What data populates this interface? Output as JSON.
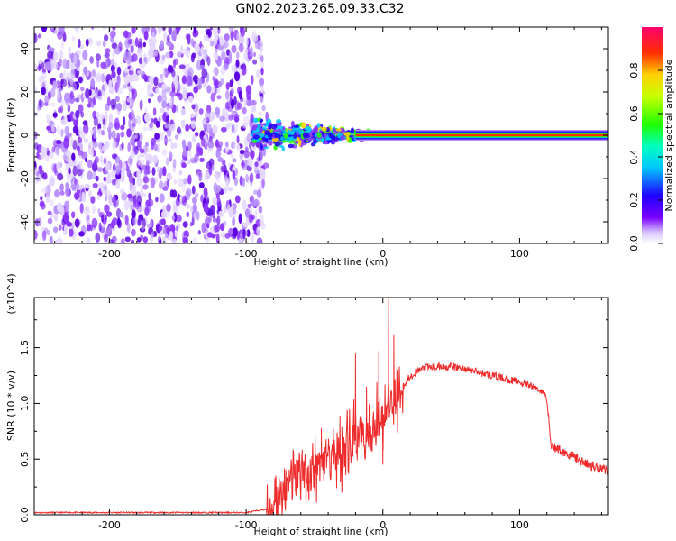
{
  "title": "GN02.2023.265.09.33.C32",
  "colors": {
    "snr_line": "#ee2a2a",
    "cloud": "#6a00ee",
    "axis": "#000000"
  },
  "chart_data": [
    {
      "type": "heatmap",
      "panel": "top",
      "xlabel": "Height of straight line (km)",
      "ylabel": "Frequency (Hz)",
      "xlim": [
        -255,
        165
      ],
      "ylim": [
        -50,
        50
      ],
      "xticks": [
        -200,
        -100,
        0,
        100
      ],
      "xtick_labels": [
        "-200",
        "-100",
        "0",
        "100"
      ],
      "yticks": [
        -40,
        -20,
        0,
        20,
        40
      ],
      "ytick_labels": [
        "-40",
        "-20",
        "0",
        "20",
        "40"
      ],
      "noise_region_x": [
        -255,
        -88
      ],
      "signal_track": {
        "x_start": -95,
        "x_end": 165,
        "frequency": 0
      },
      "colorbar": {
        "label": "Normalized spectral amplitude",
        "range": [
          0,
          1
        ],
        "ticks": [
          "0.0",
          "0.2",
          "0.4",
          "0.6",
          "0.8"
        ],
        "colormap": "rainbow (magenta-red-orange-yellow-green-cyan-blue-violet-white)"
      },
      "grid": false
    },
    {
      "type": "line",
      "panel": "bottom",
      "xlabel": "Height of straight line (km)",
      "ylabel": "SNR (10 * v/v)",
      "y_multiplier": "(x10^4)",
      "xlim": [
        -255,
        165
      ],
      "ylim": [
        0,
        1.95
      ],
      "xticks": [
        -200,
        -100,
        0,
        100
      ],
      "xtick_labels": [
        "-200",
        "-100",
        "0",
        "100"
      ],
      "yticks": [
        0,
        0.5,
        1.0,
        1.5
      ],
      "ytick_labels": [
        "0.0",
        "0.5",
        "1.0",
        "1.5"
      ],
      "series": [
        {
          "x": [
            -255,
            -200,
            -150,
            -100,
            -85,
            -70,
            -62,
            -55,
            -45,
            -35,
            -25,
            -15,
            -8,
            -2,
            5,
            12,
            20,
            30,
            40,
            50,
            60,
            70,
            80,
            90,
            100,
            110,
            115,
            120,
            123,
            130,
            140,
            150,
            160,
            165
          ],
          "y": [
            0.02,
            0.02,
            0.02,
            0.02,
            0.05,
            0.2,
            0.4,
            0.35,
            0.5,
            0.55,
            0.6,
            0.75,
            0.8,
            0.85,
            1.0,
            1.1,
            1.25,
            1.32,
            1.33,
            1.33,
            1.31,
            1.28,
            1.25,
            1.22,
            1.19,
            1.15,
            1.12,
            1.05,
            0.62,
            0.58,
            0.52,
            0.45,
            0.42,
            0.4
          ],
          "spikes": [
            [
              -45,
              0.78
            ],
            [
              -20,
              1.45
            ],
            [
              -12,
              1.15
            ],
            [
              -3,
              1.47
            ],
            [
              4,
              1.95
            ],
            [
              8,
              1.62
            ],
            [
              0,
              0.45
            ],
            [
              -30,
              0.2
            ]
          ]
        }
      ],
      "grid": false
    }
  ]
}
